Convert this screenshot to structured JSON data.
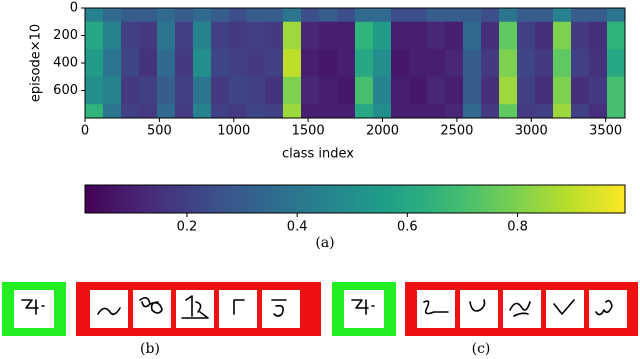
{
  "chart_data": {
    "type": "heatmap",
    "x_label": "class index",
    "y_label": "episode×10",
    "xlim": [
      0,
      3630
    ],
    "ylim": [
      0,
      800
    ],
    "xticks": [
      0,
      500,
      1000,
      1500,
      2000,
      2500,
      3000,
      3500
    ],
    "yticks": [
      0,
      200,
      400,
      600
    ],
    "x_bins": [
      0,
      121,
      242,
      363,
      484,
      605,
      726,
      847,
      968,
      1089,
      1210,
      1331,
      1452,
      1573,
      1694,
      1815,
      1936,
      2057,
      2178,
      2299,
      2420,
      2541,
      2662,
      2783,
      2904,
      3025,
      3146,
      3267,
      3388,
      3509,
      3630
    ],
    "y_bins": [
      0,
      100,
      300,
      500,
      700,
      800
    ],
    "z": [
      [
        0.45,
        0.35,
        0.3,
        0.3,
        0.35,
        0.3,
        0.35,
        0.3,
        0.25,
        0.3,
        0.3,
        0.4,
        0.25,
        0.3,
        0.25,
        0.35,
        0.35,
        0.25,
        0.25,
        0.3,
        0.3,
        0.3,
        0.25,
        0.4,
        0.3,
        0.3,
        0.45,
        0.3,
        0.3,
        0.4
      ],
      [
        0.6,
        0.45,
        0.2,
        0.18,
        0.4,
        0.2,
        0.45,
        0.2,
        0.18,
        0.2,
        0.18,
        0.85,
        0.12,
        0.1,
        0.1,
        0.65,
        0.55,
        0.1,
        0.1,
        0.12,
        0.1,
        0.35,
        0.15,
        0.75,
        0.2,
        0.15,
        0.8,
        0.18,
        0.15,
        0.65
      ],
      [
        0.55,
        0.4,
        0.22,
        0.16,
        0.35,
        0.18,
        0.5,
        0.22,
        0.2,
        0.18,
        0.2,
        0.9,
        0.1,
        0.08,
        0.1,
        0.6,
        0.5,
        0.08,
        0.1,
        0.1,
        0.12,
        0.3,
        0.18,
        0.8,
        0.22,
        0.18,
        0.75,
        0.2,
        0.16,
        0.6
      ],
      [
        0.5,
        0.45,
        0.18,
        0.2,
        0.3,
        0.2,
        0.4,
        0.18,
        0.22,
        0.2,
        0.16,
        0.8,
        0.12,
        0.1,
        0.08,
        0.7,
        0.45,
        0.1,
        0.08,
        0.12,
        0.1,
        0.3,
        0.15,
        0.85,
        0.2,
        0.15,
        0.8,
        0.15,
        0.18,
        0.7
      ],
      [
        0.65,
        0.4,
        0.2,
        0.18,
        0.35,
        0.18,
        0.45,
        0.2,
        0.18,
        0.22,
        0.2,
        0.85,
        0.1,
        0.1,
        0.1,
        0.6,
        0.5,
        0.1,
        0.1,
        0.1,
        0.12,
        0.35,
        0.18,
        0.75,
        0.18,
        0.2,
        0.85,
        0.2,
        0.15,
        0.7
      ]
    ],
    "colormap": "viridis",
    "clim": [
      0.015,
      0.995
    ],
    "colorbar_ticks": [
      0.2,
      0.4,
      0.6,
      0.8
    ],
    "panel_labels": [
      "(a)",
      "(b)",
      "(c)"
    ]
  }
}
